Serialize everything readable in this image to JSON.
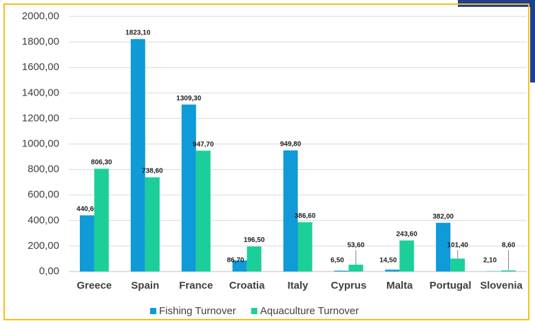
{
  "chart_data": {
    "type": "bar",
    "categories": [
      "Greece",
      "Spain",
      "France",
      "Croatia",
      "Italy",
      "Cyprus",
      "Malta",
      "Portugal",
      "Slovenia"
    ],
    "series": [
      {
        "name": "Fishing Turnover",
        "color": "#0f9ad8",
        "values": [
          440.6,
          1823.1,
          1309.3,
          86.7,
          949.8,
          6.5,
          14.5,
          382.0,
          2.1
        ],
        "value_labels": [
          "440,60",
          "1823,10",
          "1309,30",
          "86,70",
          "949,80",
          "6,50",
          "14,50",
          "382,00",
          "2,10"
        ]
      },
      {
        "name": "Aquaculture Turnover",
        "color": "#1ccf9a",
        "values": [
          806.3,
          738.6,
          947.7,
          196.5,
          386.6,
          53.6,
          243.6,
          101.4,
          8.6
        ],
        "value_labels": [
          "806,30",
          "738,60",
          "947,70",
          "196,50",
          "386,60",
          "53,60",
          "243,60",
          "101,40",
          "8,60"
        ]
      }
    ],
    "ylim": [
      0,
      2000
    ],
    "yticks": [
      {
        "value": 0,
        "label": "0,00"
      },
      {
        "value": 200,
        "label": "200,00"
      },
      {
        "value": 400,
        "label": "400,00"
      },
      {
        "value": 600,
        "label": "600,00"
      },
      {
        "value": 800,
        "label": "800,00"
      },
      {
        "value": 1000,
        "label": "1000,00"
      },
      {
        "value": 1200,
        "label": "1200,00"
      },
      {
        "value": 1400,
        "label": "1400,00"
      },
      {
        "value": 1600,
        "label": "1600,00"
      },
      {
        "value": 1800,
        "label": "1800,00"
      },
      {
        "value": 2000,
        "label": "2000,00"
      }
    ],
    "grid": true,
    "legend": "bottom"
  }
}
